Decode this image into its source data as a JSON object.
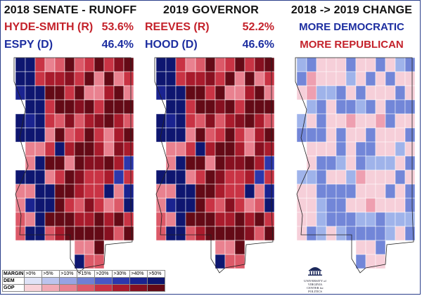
{
  "panels": [
    {
      "title": "2018 SENATE - RUNOFF",
      "rows": [
        {
          "name": "HYDE-SMITH (R)",
          "pct": "53.6%",
          "party": "R"
        },
        {
          "name": "ESPY (D)",
          "pct": "46.4%",
          "party": "D"
        }
      ]
    },
    {
      "title": "2019 GOVERNOR",
      "rows": [
        {
          "name": "REEVES (R)",
          "pct": "52.2%",
          "party": "R"
        },
        {
          "name": "HOOD (D)",
          "pct": "46.6%",
          "party": "D"
        }
      ]
    },
    {
      "title": "2018 -> 2019 CHANGE",
      "rows": [
        {
          "name": "MORE DEMOCRATIC",
          "party": "D"
        },
        {
          "name": "MORE REPUBLICAN",
          "party": "R"
        }
      ]
    }
  ],
  "legend": {
    "header": "MARGIN",
    "bins": [
      ">0%",
      ">5%",
      ">10%",
      ">15%",
      ">20%",
      ">30%",
      ">40%",
      ">50%"
    ],
    "dem_label": "DEM",
    "gop_label": "GOP",
    "dem_colors": [
      "#dfe3f7",
      "#bcc4ee",
      "#97a3e3",
      "#6f7fd4",
      "#4957c4",
      "#2c37ab",
      "#1a2390",
      "#0e1670"
    ],
    "gop_colors": [
      "#f9d3d9",
      "#f2aab5",
      "#e9818f",
      "#dc5968",
      "#c93344",
      "#a91b2c",
      "#871020",
      "#640a16"
    ]
  },
  "change_colors": {
    "dem": [
      "#cfdcf6",
      "#9fb3ea",
      "#7286d8"
    ],
    "gop": [
      "#f6cfd9",
      "#ee9fb0"
    ]
  },
  "logo": {
    "icon": "rotunda-icon",
    "line1": "UNIVERSITY of VIRGINIA",
    "line2": "CENTER for POLITICS"
  }
}
